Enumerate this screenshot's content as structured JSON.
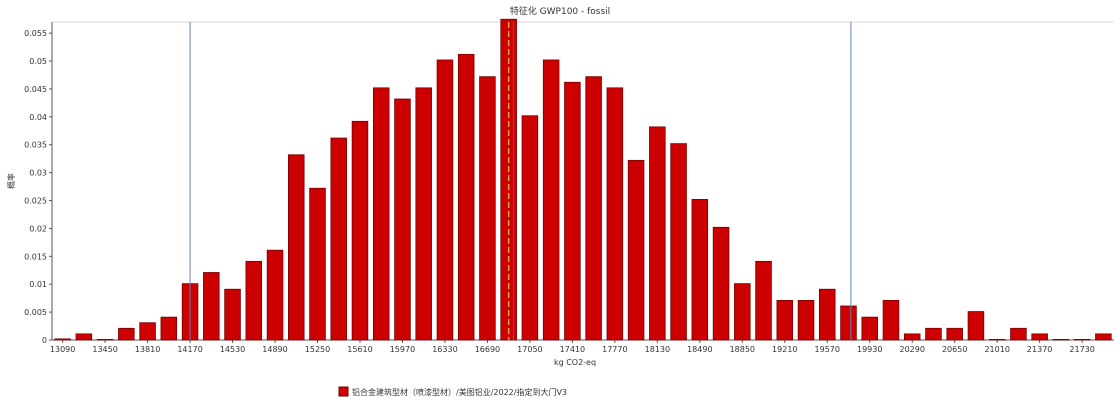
{
  "chart_data": {
    "type": "bar",
    "title": "特征化 GWP100 - fossil",
    "xlabel": "kg CO2-eq",
    "ylabel": "概率",
    "ylim": [
      0,
      0.057
    ],
    "y_ticks": [
      0,
      0.005,
      0.01,
      0.015,
      0.02,
      0.025,
      0.03,
      0.035,
      0.04,
      0.045,
      0.05,
      0.055
    ],
    "y_tick_labels": [
      "0",
      "0.005",
      "0.01",
      "0.015",
      "0.02",
      "0.025",
      "0.03",
      "0.035",
      "0.04",
      "0.045",
      "0.05",
      "0.055"
    ],
    "x_tick_labels": [
      "13090",
      "13450",
      "13810",
      "14170",
      "14530",
      "14890",
      "15250",
      "15610",
      "15970",
      "16330",
      "16690",
      "17050",
      "17410",
      "17770",
      "18130",
      "18490",
      "18850",
      "19210",
      "19570",
      "19930",
      "20290",
      "20650",
      "21010",
      "21370",
      "21730"
    ],
    "x_start": 13090,
    "bin_width": 180,
    "values": [
      0.0002,
      0.0011,
      0.0001,
      0.0021,
      0.0031,
      0.0041,
      0.0101,
      0.0121,
      0.0091,
      0.0141,
      0.0161,
      0.0332,
      0.0272,
      0.0362,
      0.0392,
      0.0452,
      0.0432,
      0.0452,
      0.0502,
      0.0512,
      0.0472,
      0.0575,
      0.0402,
      0.0502,
      0.0462,
      0.0472,
      0.0452,
      0.0322,
      0.0382,
      0.0352,
      0.0252,
      0.0202,
      0.0101,
      0.0141,
      0.0071,
      0.0071,
      0.0091,
      0.0061,
      0.0041,
      0.0071,
      0.0011,
      0.0021,
      0.0021,
      0.0051,
      0.0001,
      0.0021,
      0.0011,
      0.0001,
      0.0001,
      0.0011
    ],
    "vlines": [
      14260,
      16960,
      17000,
      19860
    ],
    "vline_styles": [
      "solid-blue",
      "dashed-orange",
      "solid-blue-dark",
      "solid-blue"
    ],
    "series": [
      {
        "name": "铝合金建筑型材（喷漆型材）/美图铝业/2022/指定到大门V3",
        "color": "#cc0000"
      }
    ],
    "grid": false,
    "legend_position": "bottom-left"
  },
  "colors": {
    "bar_fill": "#cc0000",
    "bar_stroke": "#7a0000",
    "axis": "#555555",
    "vline_blue": "#6b7fb8",
    "vline_orange": "#e8a33c"
  }
}
